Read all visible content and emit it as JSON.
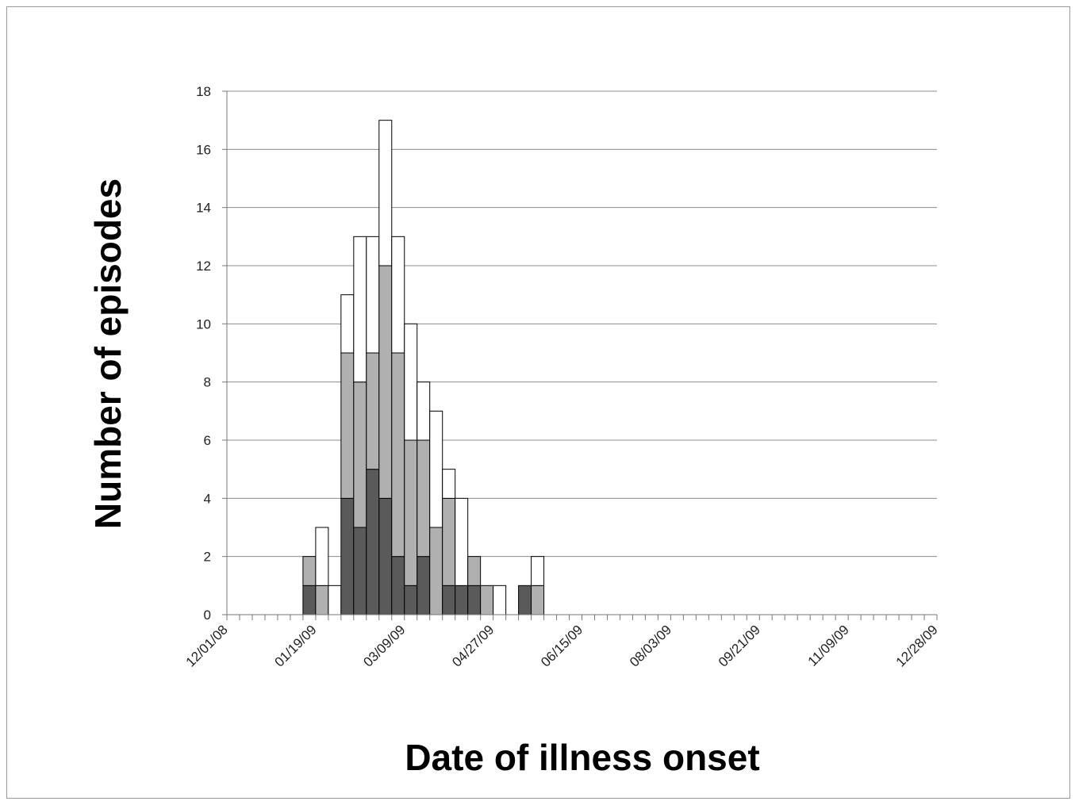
{
  "chart_data": {
    "type": "bar",
    "stacked": true,
    "xlabel": "Date of illness onset",
    "ylabel": "Number of episodes",
    "ylim": [
      0,
      18
    ],
    "yticks": [
      0,
      2,
      4,
      6,
      8,
      10,
      12,
      14,
      16,
      18
    ],
    "grid": true,
    "xlim": [
      "12/01/08",
      "12/28/09"
    ],
    "bin_days": 7,
    "xtick_labels": [
      "12/01/08",
      "01/19/09",
      "03/09/09",
      "04/27/09",
      "06/15/09",
      "08/03/09",
      "09/21/09",
      "11/09/09",
      "12/28/09"
    ],
    "x": [
      "01/12/09",
      "01/19/09",
      "01/26/09",
      "02/02/09",
      "02/09/09",
      "02/16/09",
      "02/23/09",
      "03/02/09",
      "03/09/09",
      "03/16/09",
      "03/23/09",
      "03/30/09",
      "04/06/09",
      "04/13/09",
      "04/20/09",
      "04/27/09",
      "05/04/09",
      "05/11/09",
      "05/18/09"
    ],
    "series": [
      {
        "color": "#5a5a5a",
        "values": [
          1,
          0,
          0,
          4,
          3,
          5,
          4,
          2,
          1,
          2,
          0,
          1,
          1,
          1,
          0,
          0,
          0,
          1,
          0
        ]
      },
      {
        "color": "#b0b0b0",
        "values": [
          1,
          1,
          0,
          5,
          5,
          4,
          8,
          7,
          5,
          4,
          3,
          3,
          0,
          1,
          1,
          0,
          0,
          0,
          1
        ]
      },
      {
        "color": "#ffffff",
        "values": [
          0,
          2,
          1,
          2,
          5,
          4,
          5,
          4,
          4,
          2,
          4,
          1,
          3,
          0,
          0,
          1,
          0,
          0,
          1
        ]
      }
    ]
  }
}
